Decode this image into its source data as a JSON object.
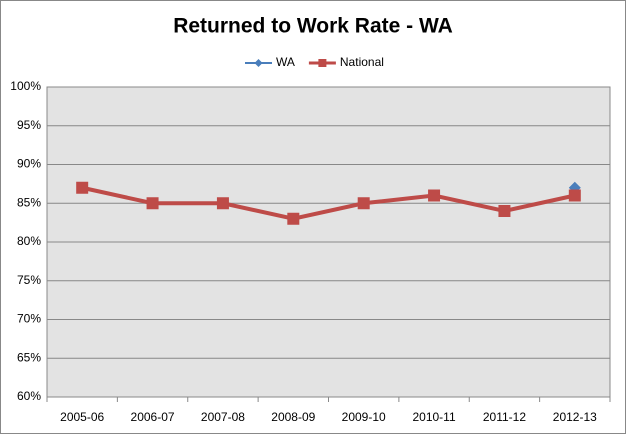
{
  "chart_data": {
    "type": "line",
    "title": "Returned to Work Rate - WA",
    "categories": [
      "2005-06",
      "2006-07",
      "2007-08",
      "2008-09",
      "2009-10",
      "2010-11",
      "2011-12",
      "2012-13"
    ],
    "series": [
      {
        "name": "WA",
        "color": "#4a7ebb",
        "marker": "diamond",
        "values": [
          null,
          null,
          null,
          null,
          null,
          null,
          null,
          87
        ]
      },
      {
        "name": "National",
        "color": "#be4b48",
        "marker": "square",
        "values": [
          87,
          85,
          85,
          83,
          85,
          86,
          84,
          86
        ]
      }
    ],
    "ylim": [
      60,
      100
    ],
    "yticks": [
      {
        "value": 60,
        "label": "60%"
      },
      {
        "value": 65,
        "label": "65%"
      },
      {
        "value": 70,
        "label": "70%"
      },
      {
        "value": 75,
        "label": "75%"
      },
      {
        "value": 80,
        "label": "80%"
      },
      {
        "value": 85,
        "label": "85%"
      },
      {
        "value": 90,
        "label": "90%"
      },
      {
        "value": 95,
        "label": "95%"
      },
      {
        "value": 100,
        "label": "100%"
      }
    ],
    "grid": true,
    "legend": "top"
  }
}
